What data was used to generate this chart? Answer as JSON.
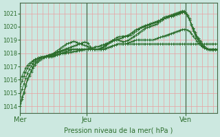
{
  "bg_color": "#cce8e0",
  "grid_color": "#e8a0a0",
  "line_color": "#2d6e2d",
  "ylim": [
    1013.5,
    1021.8
  ],
  "yticks": [
    1014,
    1015,
    1016,
    1017,
    1018,
    1019,
    1020,
    1021
  ],
  "xlabel": "Pression niveau de la mer( hPa )",
  "xlabel_color": "#2d6e2d",
  "day_labels": [
    "Mer",
    "Jeu",
    "Ven"
  ],
  "day_positions": [
    0,
    36,
    90
  ],
  "total_points": 108,
  "vgrid_step": 3,
  "lines": [
    [
      1014.0,
      1014.5,
      1015.0,
      1015.5,
      1016.0,
      1016.3,
      1016.6,
      1016.9,
      1017.1,
      1017.3,
      1017.4,
      1017.5,
      1017.6,
      1017.65,
      1017.7,
      1017.75,
      1017.8,
      1017.8,
      1017.85,
      1017.9,
      1017.9,
      1017.95,
      1018.0,
      1018.0,
      1018.0,
      1018.05,
      1018.05,
      1018.1,
      1018.1,
      1018.15,
      1018.15,
      1018.2,
      1018.2,
      1018.25,
      1018.25,
      1018.3,
      1018.3,
      1018.35,
      1018.4,
      1018.4,
      1018.45,
      1018.5,
      1018.5,
      1018.55,
      1018.6,
      1018.65,
      1018.7,
      1018.75,
      1018.8,
      1018.85,
      1018.9,
      1018.95,
      1019.0,
      1019.05,
      1019.1,
      1019.15,
      1019.2,
      1019.25,
      1019.3,
      1019.35,
      1019.4,
      1019.5,
      1019.6,
      1019.7,
      1019.8,
      1019.9,
      1020.0,
      1020.05,
      1020.1,
      1020.15,
      1020.2,
      1020.25,
      1020.3,
      1020.35,
      1020.4,
      1020.45,
      1020.5,
      1020.55,
      1020.6,
      1020.65,
      1020.7,
      1020.75,
      1020.8,
      1020.85,
      1020.9,
      1020.95,
      1021.0,
      1021.05,
      1021.1,
      1021.1,
      1021.0,
      1020.8,
      1020.5,
      1020.2,
      1019.9,
      1019.6,
      1019.3,
      1019.1,
      1018.9,
      1018.7,
      1018.55,
      1018.4,
      1018.35,
      1018.3,
      1018.3,
      1018.3,
      1018.3,
      1018.3
    ],
    [
      1014.2,
      1014.7,
      1015.1,
      1015.6,
      1016.1,
      1016.4,
      1016.7,
      1017.0,
      1017.2,
      1017.4,
      1017.5,
      1017.6,
      1017.7,
      1017.75,
      1017.8,
      1017.85,
      1017.9,
      1017.9,
      1018.0,
      1018.05,
      1018.1,
      1018.15,
      1018.2,
      1018.25,
      1018.3,
      1018.35,
      1018.4,
      1018.45,
      1018.5,
      1018.55,
      1018.6,
      1018.65,
      1018.7,
      1018.75,
      1018.8,
      1018.85,
      1018.8,
      1018.75,
      1018.5,
      1018.35,
      1018.3,
      1018.3,
      1018.3,
      1018.35,
      1018.4,
      1018.45,
      1018.55,
      1018.65,
      1018.75,
      1018.85,
      1018.95,
      1019.05,
      1019.15,
      1019.2,
      1019.25,
      1019.25,
      1019.3,
      1019.3,
      1019.35,
      1019.4,
      1019.5,
      1019.6,
      1019.7,
      1019.8,
      1019.85,
      1019.9,
      1019.95,
      1020.0,
      1020.05,
      1020.1,
      1020.15,
      1020.2,
      1020.25,
      1020.3,
      1020.35,
      1020.4,
      1020.5,
      1020.6,
      1020.7,
      1020.75,
      1020.8,
      1020.85,
      1020.9,
      1020.95,
      1021.0,
      1021.05,
      1021.1,
      1021.15,
      1021.2,
      1021.2,
      1021.1,
      1020.9,
      1020.6,
      1020.2,
      1019.85,
      1019.5,
      1019.2,
      1019.0,
      1018.8,
      1018.6,
      1018.45,
      1018.35,
      1018.3,
      1018.25,
      1018.25,
      1018.25,
      1018.25,
      1018.25
    ],
    [
      1014.8,
      1015.3,
      1015.7,
      1016.1,
      1016.5,
      1016.8,
      1017.0,
      1017.2,
      1017.35,
      1017.5,
      1017.6,
      1017.65,
      1017.7,
      1017.75,
      1017.8,
      1017.85,
      1017.9,
      1017.95,
      1018.0,
      1018.1,
      1018.2,
      1018.3,
      1018.4,
      1018.5,
      1018.6,
      1018.7,
      1018.75,
      1018.8,
      1018.85,
      1018.9,
      1018.85,
      1018.8,
      1018.75,
      1018.7,
      1018.65,
      1018.6,
      1018.55,
      1018.5,
      1018.4,
      1018.3,
      1018.3,
      1018.3,
      1018.3,
      1018.35,
      1018.4,
      1018.5,
      1018.6,
      1018.7,
      1018.8,
      1018.9,
      1018.95,
      1019.0,
      1019.0,
      1019.0,
      1018.95,
      1018.9,
      1018.85,
      1018.9,
      1018.95,
      1019.0,
      1019.1,
      1019.2,
      1019.3,
      1019.4,
      1019.5,
      1019.6,
      1019.7,
      1019.8,
      1019.9,
      1019.95,
      1020.0,
      1020.05,
      1020.1,
      1020.15,
      1020.2,
      1020.3,
      1020.4,
      1020.5,
      1020.6,
      1020.65,
      1020.7,
      1020.75,
      1020.8,
      1020.85,
      1020.9,
      1020.95,
      1021.0,
      1021.05,
      1021.1,
      1021.1,
      1021.0,
      1020.8,
      1020.5,
      1020.1,
      1019.7,
      1019.4,
      1019.1,
      1018.9,
      1018.7,
      1018.55,
      1018.45,
      1018.35,
      1018.3,
      1018.3,
      1018.3,
      1018.3,
      1018.3,
      1018.3
    ],
    [
      1015.5,
      1015.9,
      1016.3,
      1016.6,
      1016.9,
      1017.1,
      1017.25,
      1017.4,
      1017.5,
      1017.6,
      1017.65,
      1017.7,
      1017.75,
      1017.75,
      1017.8,
      1017.8,
      1017.85,
      1017.9,
      1017.95,
      1018.0,
      1018.05,
      1018.1,
      1018.15,
      1018.2,
      1018.25,
      1018.3,
      1018.3,
      1018.3,
      1018.3,
      1018.3,
      1018.3,
      1018.3,
      1018.3,
      1018.3,
      1018.3,
      1018.3,
      1018.3,
      1018.3,
      1018.3,
      1018.3,
      1018.3,
      1018.3,
      1018.3,
      1018.3,
      1018.3,
      1018.3,
      1018.35,
      1018.4,
      1018.45,
      1018.5,
      1018.55,
      1018.6,
      1018.65,
      1018.7,
      1018.7,
      1018.7,
      1018.7,
      1018.7,
      1018.75,
      1018.8,
      1018.85,
      1018.9,
      1018.95,
      1019.0,
      1019.0,
      1019.0,
      1019.0,
      1019.0,
      1019.0,
      1019.0,
      1019.0,
      1019.0,
      1019.0,
      1019.05,
      1019.1,
      1019.15,
      1019.2,
      1019.25,
      1019.3,
      1019.35,
      1019.4,
      1019.45,
      1019.5,
      1019.55,
      1019.6,
      1019.65,
      1019.7,
      1019.75,
      1019.8,
      1019.8,
      1019.8,
      1019.75,
      1019.65,
      1019.5,
      1019.3,
      1019.1,
      1018.9,
      1018.75,
      1018.6,
      1018.5,
      1018.4,
      1018.35,
      1018.3,
      1018.3,
      1018.3,
      1018.3,
      1018.3,
      1018.3
    ],
    [
      1016.0,
      1016.3,
      1016.6,
      1016.9,
      1017.1,
      1017.25,
      1017.35,
      1017.45,
      1017.55,
      1017.6,
      1017.65,
      1017.7,
      1017.75,
      1017.75,
      1017.75,
      1017.75,
      1017.75,
      1017.75,
      1017.8,
      1017.85,
      1017.9,
      1017.95,
      1018.0,
      1018.05,
      1018.1,
      1018.15,
      1018.2,
      1018.25,
      1018.3,
      1018.3,
      1018.3,
      1018.3,
      1018.3,
      1018.3,
      1018.3,
      1018.3,
      1018.3,
      1018.3,
      1018.3,
      1018.3,
      1018.3,
      1018.3,
      1018.3,
      1018.3,
      1018.3,
      1018.3,
      1018.35,
      1018.4,
      1018.45,
      1018.5,
      1018.55,
      1018.6,
      1018.65,
      1018.7,
      1018.7,
      1018.7,
      1018.7,
      1018.7,
      1018.7,
      1018.7,
      1018.7,
      1018.7,
      1018.7,
      1018.7,
      1018.7,
      1018.7,
      1018.7,
      1018.7,
      1018.7,
      1018.7,
      1018.7,
      1018.7,
      1018.7,
      1018.7,
      1018.7,
      1018.7,
      1018.7,
      1018.7,
      1018.7,
      1018.7,
      1018.7,
      1018.7,
      1018.7,
      1018.7,
      1018.7,
      1018.7,
      1018.7,
      1018.7,
      1018.7,
      1018.7,
      1018.7,
      1018.7,
      1018.7,
      1018.7,
      1018.7,
      1018.7,
      1018.7,
      1018.7,
      1018.7,
      1018.7,
      1018.7,
      1018.7,
      1018.7,
      1018.7,
      1018.7,
      1018.7,
      1018.7,
      1018.7
    ]
  ]
}
